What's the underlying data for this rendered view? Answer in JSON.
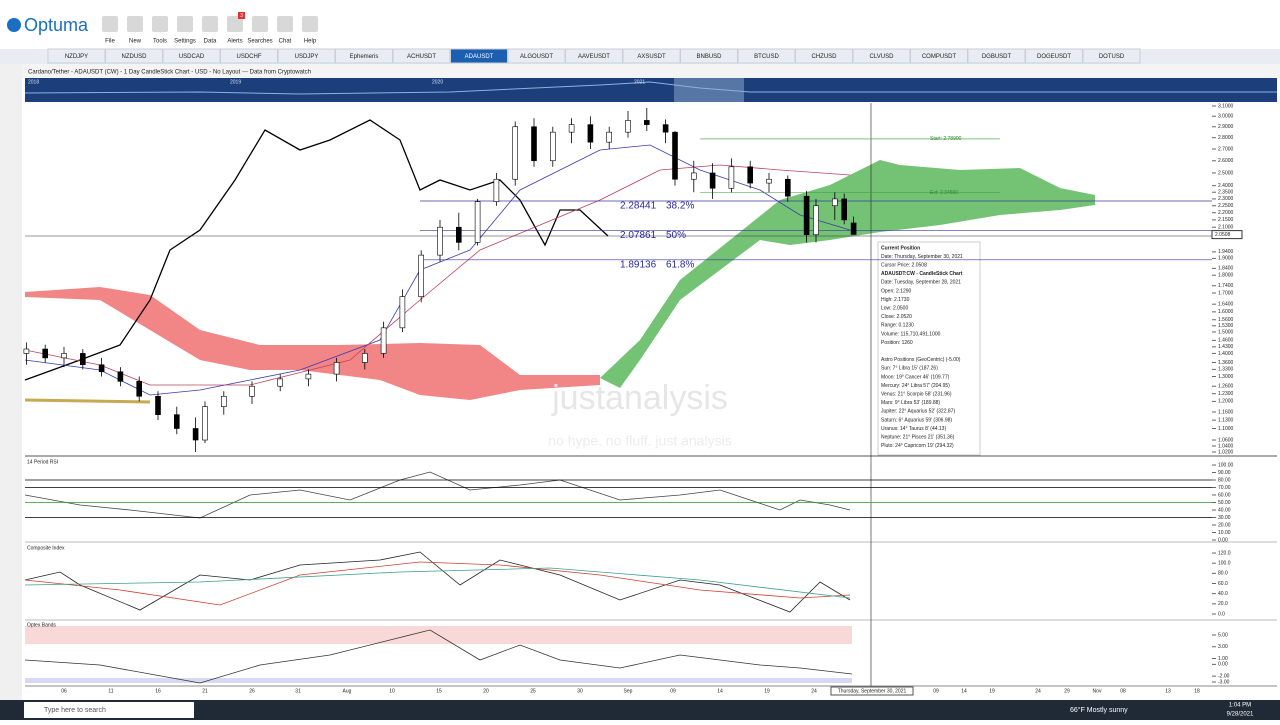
{
  "app": {
    "logo": "Optuma",
    "toolbar": [
      "File",
      "New",
      "Tools",
      "Settings",
      "Data",
      "Alerts",
      "Searches",
      "Chat",
      "Help"
    ],
    "alert_count": "3",
    "tabs": [
      "NZDJPY",
      "NZDUSD",
      "USDCAD",
      "USDCHF",
      "USDJPY",
      "Ephemeris",
      "ACHUSDT",
      "ADAUSDT",
      "ALGOUSDT",
      "AAVEUSDT",
      "AXSUSDT",
      "BNBUSD",
      "BTCUSD",
      "CHZUSD",
      "CLVUSD",
      "COMPUSDT",
      "DGBUSDT",
      "DOGEUSDT",
      "DOTUSD"
    ],
    "active_tab": "ADAUSDT",
    "chart_title": "Cardano/Tether - ADAUSDT (CW) - 1 Day CandleStick Chart - USD - No Layout --- Data from Cryptowatch",
    "overview_years": [
      "2018",
      "2019",
      "2020",
      "2021"
    ]
  },
  "chart_data": {
    "type": "candlestick",
    "log": true,
    "ylim": [
      1.02,
      3.1
    ],
    "xlim": [
      -4.1,
      122
    ],
    "yticks": [
      {
        "value": 3.1,
        "label": "3.1000"
      },
      {
        "value": 3.0,
        "label": "3.0000"
      },
      {
        "value": 2.9,
        "label": "2.9000"
      },
      {
        "value": 2.8,
        "label": "2.8000"
      },
      {
        "value": 2.7,
        "label": "2.7000"
      },
      {
        "value": 2.6,
        "label": "2.6000"
      },
      {
        "value": 2.5,
        "label": "2.5000"
      },
      {
        "value": 2.4,
        "label": "2.4000"
      },
      {
        "value": 2.35,
        "label": "2.3500"
      },
      {
        "value": 2.3,
        "label": "2.3000"
      },
      {
        "value": 2.25,
        "label": "2.2500"
      },
      {
        "value": 2.2,
        "label": "2.2000"
      },
      {
        "value": 2.15,
        "label": "2.1500"
      },
      {
        "value": 2.1,
        "label": "2.1000"
      },
      {
        "value": 1.94,
        "label": "1.9400"
      },
      {
        "value": 1.9,
        "label": "1.9000"
      },
      {
        "value": 1.84,
        "label": "1.8400"
      },
      {
        "value": 1.8,
        "label": "1.8000"
      },
      {
        "value": 1.74,
        "label": "1.7400"
      },
      {
        "value": 1.7,
        "label": "1.7000"
      },
      {
        "value": 1.64,
        "label": "1.6400"
      },
      {
        "value": 1.6,
        "label": "1.6000"
      },
      {
        "value": 1.56,
        "label": "1.5600"
      },
      {
        "value": 1.53,
        "label": "1.5300"
      },
      {
        "value": 1.5,
        "label": "1.5000"
      },
      {
        "value": 1.46,
        "label": "1.4600"
      },
      {
        "value": 1.43,
        "label": "1.4300"
      },
      {
        "value": 1.4,
        "label": "1.4000"
      },
      {
        "value": 1.36,
        "label": "1.3600"
      },
      {
        "value": 1.33,
        "label": "1.3300"
      },
      {
        "value": 1.3,
        "label": "1.3000"
      },
      {
        "value": 1.26,
        "label": "1.2600"
      },
      {
        "value": 1.23,
        "label": "1.2300"
      },
      {
        "value": 1.2,
        "label": "1.2000"
      },
      {
        "value": 1.16,
        "label": "1.1600"
      },
      {
        "value": 1.13,
        "label": "1.1300"
      },
      {
        "value": 1.1,
        "label": "1.1000"
      },
      {
        "value": 1.06,
        "label": "1.0600"
      },
      {
        "value": 1.04,
        "label": "1.0400"
      },
      {
        "value": 1.02,
        "label": "1.0200"
      }
    ],
    "date_labels": [
      "06",
      "11",
      "16",
      "21",
      "26",
      "31",
      "Aug",
      "10",
      "15",
      "20",
      "25",
      "30",
      "Sep",
      "09",
      "14",
      "19",
      "24",
      "09",
      "14",
      "19",
      "24",
      "29",
      "Nov",
      "08",
      "13",
      "18"
    ],
    "cursor_date": "Thursday, September 30, 2021",
    "current_price": {
      "value": 2.0508,
      "label": "2.0508"
    },
    "candles": [
      [
        -4,
        1.4,
        1.45,
        1.35,
        1.42
      ],
      [
        -2,
        1.42,
        1.44,
        1.36,
        1.38
      ],
      [
        0,
        1.38,
        1.43,
        1.34,
        1.4
      ],
      [
        2,
        1.4,
        1.42,
        1.33,
        1.35
      ],
      [
        4,
        1.35,
        1.38,
        1.3,
        1.32
      ],
      [
        6,
        1.32,
        1.34,
        1.26,
        1.28
      ],
      [
        8,
        1.28,
        1.3,
        1.2,
        1.22
      ],
      [
        10,
        1.22,
        1.24,
        1.13,
        1.15
      ],
      [
        12,
        1.15,
        1.18,
        1.08,
        1.1
      ],
      [
        14,
        1.1,
        1.14,
        1.02,
        1.06
      ],
      [
        15,
        1.06,
        1.2,
        1.05,
        1.18
      ],
      [
        17,
        1.18,
        1.24,
        1.15,
        1.22
      ],
      [
        20,
        1.22,
        1.28,
        1.19,
        1.26
      ],
      [
        23,
        1.26,
        1.31,
        1.24,
        1.29
      ],
      [
        26,
        1.29,
        1.33,
        1.26,
        1.31
      ],
      [
        29,
        1.31,
        1.38,
        1.28,
        1.36
      ],
      [
        32,
        1.36,
        1.42,
        1.33,
        1.4
      ],
      [
        34,
        1.4,
        1.55,
        1.38,
        1.52
      ],
      [
        36,
        1.52,
        1.72,
        1.5,
        1.68
      ],
      [
        38,
        1.68,
        1.95,
        1.65,
        1.92
      ],
      [
        40,
        1.92,
        2.15,
        1.88,
        2.1
      ],
      [
        42,
        2.1,
        2.2,
        1.95,
        2.0
      ],
      [
        44,
        2.0,
        2.3,
        1.98,
        2.28
      ],
      [
        46,
        2.28,
        2.5,
        2.25,
        2.45
      ],
      [
        48,
        2.45,
        2.95,
        2.4,
        2.9
      ],
      [
        50,
        2.9,
        2.98,
        2.55,
        2.6
      ],
      [
        52,
        2.6,
        2.9,
        2.55,
        2.85
      ],
      [
        54,
        2.85,
        2.98,
        2.75,
        2.92
      ],
      [
        56,
        2.92,
        3.0,
        2.7,
        2.76
      ],
      [
        58,
        2.76,
        2.9,
        2.7,
        2.85
      ],
      [
        60,
        2.85,
        3.05,
        2.8,
        2.96
      ],
      [
        62,
        2.96,
        3.08,
        2.86,
        2.92
      ],
      [
        64,
        2.92,
        2.97,
        2.75,
        2.85
      ],
      [
        65,
        2.85,
        2.86,
        2.4,
        2.45
      ],
      [
        67,
        2.45,
        2.6,
        2.35,
        2.5
      ],
      [
        69,
        2.5,
        2.58,
        2.3,
        2.38
      ],
      [
        71,
        2.38,
        2.62,
        2.35,
        2.55
      ],
      [
        73,
        2.55,
        2.6,
        2.38,
        2.42
      ],
      [
        75,
        2.42,
        2.5,
        2.35,
        2.45
      ],
      [
        77,
        2.45,
        2.48,
        2.28,
        2.32
      ],
      [
        79,
        2.32,
        2.36,
        2.0,
        2.05
      ],
      [
        80,
        2.05,
        2.3,
        2.0,
        2.25
      ],
      [
        82,
        2.25,
        2.35,
        2.15,
        2.3
      ],
      [
        83,
        2.3,
        2.34,
        2.12,
        2.15
      ],
      [
        84,
        2.129,
        2.173,
        2.05,
        2.052
      ]
    ],
    "fib": [
      {
        "price": 2.28441,
        "percent": "38.2%"
      },
      {
        "price": 2.07861,
        "percent": "50%"
      },
      {
        "price": 1.89136,
        "percent": "61.8%"
      }
    ],
    "levels": [
      {
        "value": 2.789,
        "label": "Start: 2.78900"
      },
      {
        "value": 2.346,
        "label": "Ext: 2.34600"
      }
    ],
    "watermark": [
      "justanalysis",
      "no hype. no fluff. just analysis"
    ],
    "info_panel": [
      "Current Position",
      "Date: Thursday, September 30, 2021",
      "Cursor Price: 2.0508",
      "ADAUSDT:CW - CandleStick Chart",
      "Date: Tuesday, September 28, 2021",
      "Open: 2.1290",
      "High: 2.1730",
      "Low: 2.0500",
      "Close: 2.0520",
      "Range: 0.1230",
      "Volume: 115,710,491.1000",
      "Position: 1260",
      "",
      "Astro Positions (GeoCentric) (-5.00)",
      "Sun: 7° Libra 15' (187.26)",
      "Moon: 19° Cancer 46' (109.77)",
      "Mercury: 24° Libra 57' (204.95)",
      "Venus: 21° Scorpio 58' (231.96)",
      "Mars: 9° Libra 53' (189.88)",
      "Jupiter: 22° Aquarius 52' (322.87)",
      "Saturn: 6° Aquarius 59' (306.98)",
      "Uranus: 14° Taurus 8' (44.13)",
      "Neptune: 21° Pisces 21' (351.36)",
      "Pluto: 24° Capricorn 19' (294.32)"
    ],
    "panels": [
      {
        "title": "14 Period RSI",
        "ylim": [
          0,
          100
        ],
        "yticks": [
          {
            "value": 100,
            "label": "100.00"
          },
          {
            "value": 90,
            "label": "90.00"
          },
          {
            "value": 80,
            "label": "80.00"
          },
          {
            "value": 70,
            "label": "70.00"
          },
          {
            "value": 60,
            "label": "60.00"
          },
          {
            "value": 50,
            "label": "50.00"
          },
          {
            "value": 40,
            "label": "40.00"
          },
          {
            "value": 30,
            "label": "30.00"
          },
          {
            "value": 20,
            "label": "20.00"
          },
          {
            "value": 10,
            "label": "10.00"
          },
          {
            "value": 0,
            "label": "0.00"
          }
        ]
      },
      {
        "title": "Composite Index",
        "ylim": [
          0,
          120
        ],
        "yticks": [
          {
            "value": 120,
            "label": "120.0"
          },
          {
            "value": 100,
            "label": "100.0"
          },
          {
            "value": 80,
            "label": "80.0"
          },
          {
            "value": 60,
            "label": "60.0"
          },
          {
            "value": 40,
            "label": "40.0"
          },
          {
            "value": 20,
            "label": "20.0"
          },
          {
            "value": 0,
            "label": "0.0"
          }
        ]
      },
      {
        "title": "Optex Bands",
        "ylim": [
          -3,
          5
        ],
        "yticks": [
          {
            "value": 5,
            "label": "5.00"
          },
          {
            "value": 3,
            "label": "3.00"
          },
          {
            "value": 1,
            "label": "1.00"
          },
          {
            "value": 0,
            "label": "0.00"
          },
          {
            "value": -2,
            "label": "-2.00"
          },
          {
            "value": -3,
            "label": "-3.00"
          }
        ]
      }
    ]
  },
  "taskbar": {
    "search": "Type here to search",
    "weather": "66°F  Mostly sunny",
    "time": "1:04 PM",
    "date": "9/28/2021"
  }
}
